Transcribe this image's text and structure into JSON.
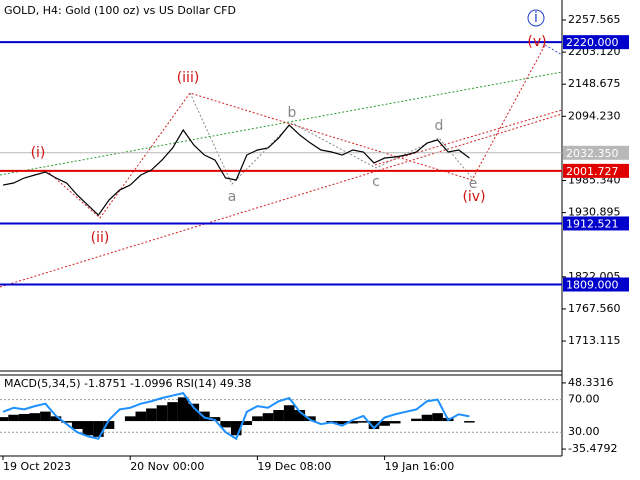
{
  "chart_data": [
    {
      "type": "line",
      "title": "GOLD, H4:  Gold (100 oz) vs US Dollar CFD",
      "categories": [
        "19 Oct 2023",
        null,
        null,
        null,
        null,
        null,
        null,
        null,
        null,
        null,
        null,
        null,
        "20 Nov 00:00",
        null,
        null,
        null,
        null,
        null,
        null,
        null,
        null,
        null,
        null,
        null,
        "19 Dec 08:00",
        null,
        null,
        null,
        null,
        null,
        null,
        null,
        null,
        null,
        null,
        null,
        "19 Jan 16:00",
        null,
        null,
        null,
        null,
        null,
        null,
        null,
        null
      ],
      "series": [
        {
          "name": "GOLD",
          "color": "#000000",
          "values": [
            1977.7,
            1981.1,
            1989.6,
            1994.7,
            1999.8,
            1989.6,
            1981.1,
            1960.8,
            1943.8,
            1926.8,
            1952.3,
            1969.2,
            1977.7,
            1994.7,
            2003.1,
            2020.1,
            2040.5,
            2071.0,
            2045.6,
            2028.6,
            2020.1,
            1989.6,
            1986.2,
            2028.6,
            2037.1,
            2040.5,
            2057.4,
            2079.5,
            2062.5,
            2048.9,
            2037.1,
            2033.7,
            2028.6,
            2037.1,
            2033.7,
            2015.1,
            2023.5,
            2025.2,
            2028.6,
            2033.7,
            2048.9,
            2054.1,
            2033.7,
            2037.1,
            2023.5
          ]
        }
      ],
      "ylim": [
        1664,
        2291.5
      ],
      "yticks": [
        {
          "value": 2257.565,
          "label": "2257.565"
        },
        {
          "value": 2203.12,
          "label": "2203.120"
        },
        {
          "value": 2148.675,
          "label": "2148.675"
        },
        {
          "value": 2094.23,
          "label": "2094.230"
        },
        {
          "value": 1985.34,
          "label": "1985.340"
        },
        {
          "value": 1930.895,
          "label": "1930.895"
        },
        {
          "value": 1822.005,
          "label": "1822.005"
        },
        {
          "value": 1767.56,
          "label": "1767.560"
        },
        {
          "value": 1713.115,
          "label": "1713.115"
        }
      ],
      "levels": [
        {
          "value": 2220,
          "label": "2220.000",
          "color": "#0000cc"
        },
        {
          "value": 2032.35,
          "label": "2032.350",
          "color": "#b8b8b8"
        },
        {
          "value": 2001.727,
          "label": "2001.727",
          "color": "#e00000"
        },
        {
          "value": 1912.521,
          "label": "1912.521",
          "color": "#0000cc"
        },
        {
          "value": 1809,
          "label": "1809.000",
          "color": "#0000cc"
        }
      ],
      "annotations": [
        {
          "text": "(i)",
          "color": "#d01010"
        },
        {
          "text": "(ii)",
          "color": "#d01010"
        },
        {
          "text": "(iii)",
          "color": "#d01010"
        },
        {
          "text": "(iv)",
          "color": "#d01010"
        },
        {
          "text": "(v)",
          "color": "#d01010"
        },
        {
          "text": "a",
          "color": "#888888"
        },
        {
          "text": "b",
          "color": "#888888"
        },
        {
          "text": "c",
          "color": "#888888"
        },
        {
          "text": "d",
          "color": "#888888"
        },
        {
          "text": "e",
          "color": "#888888"
        },
        {
          "text": "i",
          "color": "#1f3fc0"
        }
      ]
    },
    {
      "type": "indicator",
      "title": "MACD(5,34,5) -1.8751 -1.0996 RSI(14) 49.38",
      "series": [
        {
          "name": "MACD",
          "color": "#000000",
          "axis": "y2",
          "values": [
            5,
            8,
            9,
            10,
            12,
            6,
            -2,
            -10,
            -18,
            -20,
            -10,
            0,
            6,
            12,
            16,
            20,
            24,
            30,
            22,
            12,
            5,
            -8,
            -18,
            -5,
            6,
            10,
            14,
            20,
            14,
            6,
            0,
            -2,
            -4,
            -3,
            -2,
            -10,
            -6,
            -3,
            0,
            3,
            8,
            10,
            4,
            0,
            -1.8751
          ]
        },
        {
          "name": "RSI(14)",
          "color": "#1e90ff",
          "values": [
            55,
            60,
            58,
            62,
            65,
            50,
            40,
            30,
            25,
            22,
            45,
            58,
            60,
            65,
            68,
            72,
            75,
            78,
            60,
            48,
            45,
            30,
            22,
            55,
            62,
            60,
            68,
            72,
            55,
            45,
            40,
            42,
            38,
            45,
            50,
            35,
            48,
            52,
            55,
            58,
            68,
            70,
            45,
            52,
            49.38
          ]
        }
      ],
      "ylim": [
        2,
        99
      ],
      "yticks": [
        {
          "value": 70,
          "label": "70.00"
        },
        {
          "value": 30,
          "label": "30.00"
        }
      ],
      "y2lim": [
        -43,
        57.1
      ],
      "y2ticks": [
        48.3316,
        -35.4792
      ]
    }
  ]
}
